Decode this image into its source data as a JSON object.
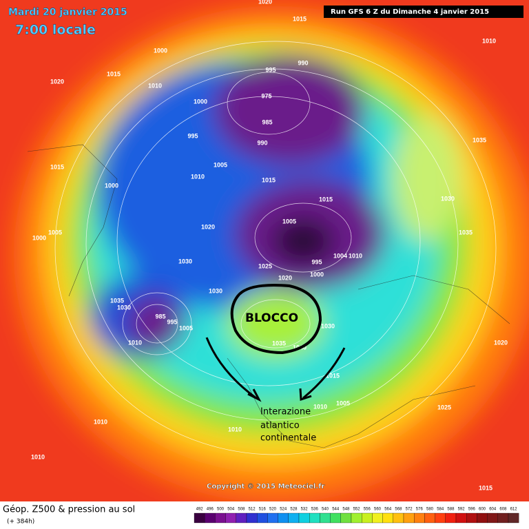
{
  "header": {
    "date": "Mardi 20 janvier 2015",
    "time": "7:00 locale",
    "run": "Run GFS 6 Z du Dimanche 4 janvier 2015"
  },
  "map": {
    "isobar_labels": [
      1020,
      1015,
      1010,
      1000,
      1020,
      1015,
      1010,
      995,
      990,
      1000,
      975,
      985,
      995,
      990,
      1035,
      1015,
      1005,
      1010,
      1015,
      1000,
      1015,
      1030,
      1005,
      1000,
      1020,
      1005,
      1035,
      995,
      1004,
      1010,
      1000,
      1030,
      1025,
      1020,
      1030,
      1035,
      1030,
      985,
      995,
      1005,
      1010,
      1030,
      1035,
      1040,
      1015,
      1020,
      1005,
      1010,
      1025,
      1010,
      1010,
      1010,
      1015
    ],
    "annotations": {
      "block": "BLOCCO",
      "interaction": [
        "Interazione",
        "atlantico",
        "continentale"
      ]
    },
    "copyright": "Copyright © 2015 Meteociel.fr"
  },
  "legend": {
    "title": "Géop. Z500 & pression au sol",
    "lead_time": "(+ 384h)",
    "scale": [
      492,
      496,
      500,
      504,
      508,
      512,
      516,
      520,
      524,
      528,
      532,
      536,
      540,
      544,
      548,
      552,
      556,
      560,
      564,
      568,
      572,
      576,
      580,
      584,
      588,
      592,
      596,
      600,
      604,
      608,
      612
    ]
  }
}
